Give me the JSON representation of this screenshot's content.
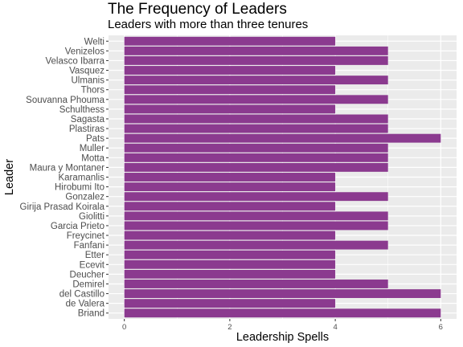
{
  "chart_data": {
    "type": "bar",
    "orientation": "horizontal",
    "title": "The Frequency of Leaders",
    "subtitle": "Leaders with more than three tenures",
    "xlabel": "Leadership Spells",
    "ylabel": "Leader",
    "categories": [
      "Welti",
      "Venizelos",
      "Velasco Ibarra",
      "Vasquez",
      "Ulmanis",
      "Thors",
      "Souvanna Phouma",
      "Schulthess",
      "Sagasta",
      "Plastiras",
      "Pats",
      "Muller",
      "Motta",
      "Maura y Montaner",
      "Karamanlis",
      "Hirobumi Ito",
      "Gonzalez",
      "Girija Prasad Koirala",
      "Giolitti",
      "Garcia Prieto",
      "Freycinet",
      "Fanfani",
      "Etter",
      "Ecevit",
      "Deucher",
      "Demirel",
      "del Castillo",
      "de Valera",
      "Briand"
    ],
    "values": [
      4,
      5,
      5,
      4,
      5,
      4,
      5,
      4,
      5,
      5,
      6,
      5,
      5,
      5,
      4,
      4,
      5,
      4,
      5,
      5,
      4,
      5,
      4,
      4,
      4,
      5,
      6,
      4,
      6
    ],
    "xticks": [
      0,
      2,
      4,
      6
    ],
    "xlim": [
      -0.3,
      6.3
    ],
    "bar_color": "#8B3A8F",
    "panel_color": "#EBEBEB",
    "grid": true
  }
}
